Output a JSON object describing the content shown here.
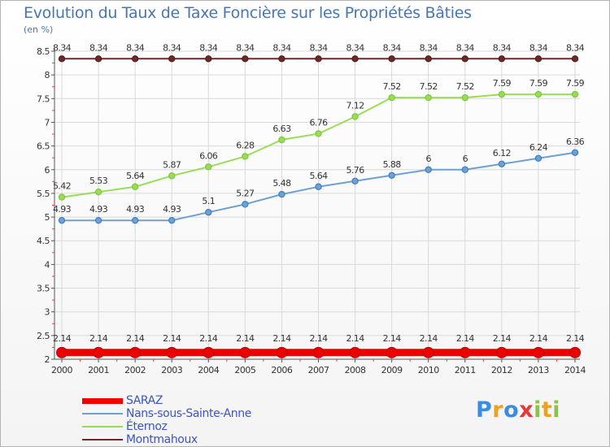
{
  "header": {
    "title": "Evolution du Taux de Taxe Foncière sur les Propriétés Bâties",
    "unit": "(en %)"
  },
  "brand": {
    "logo_text": "Proxiti",
    "letters": [
      "P",
      "r",
      "o",
      "x",
      "i",
      "t",
      "i"
    ],
    "letter_colors": [
      "#3a8de0",
      "#f0a020",
      "#3a8de0",
      "#e53935",
      "#8bc34a",
      "#f0a020",
      "#8bc34a"
    ]
  },
  "chart_data": {
    "type": "line",
    "title": "Evolution du Taux de Taxe Foncière sur les Propriétés Bâties",
    "ylabel": "(en %)",
    "xlabel": "",
    "ylim": [
      2,
      8.5
    ],
    "yticks": [
      "2",
      "2.5",
      "3",
      "3.5",
      "4",
      "4.5",
      "5",
      "5.5",
      "6",
      "6.5",
      "7",
      "7.5",
      "8",
      "8.5"
    ],
    "categories": [
      "2000",
      "2001",
      "2002",
      "2003",
      "2004",
      "2005",
      "2006",
      "2007",
      "2008",
      "2009",
      "2010",
      "2011",
      "2012",
      "2013",
      "2014"
    ],
    "series": [
      {
        "name": "SARAZ",
        "color": "#ee0000",
        "thick": true,
        "values": [
          2.14,
          2.14,
          2.14,
          2.14,
          2.14,
          2.14,
          2.14,
          2.14,
          2.14,
          2.14,
          2.14,
          2.14,
          2.14,
          2.14,
          2.14
        ],
        "labels": [
          "2.14",
          "2.14",
          "2.14",
          "2.14",
          "2.14",
          "2.14",
          "2.14",
          "2.14",
          "2.14",
          "2.14",
          "2.14",
          "2.14",
          "2.14",
          "2.14",
          "2.14"
        ]
      },
      {
        "name": "Nans-sous-Sainte-Anne",
        "color": "#6ea0d4",
        "marker": "#3d7fc2",
        "values": [
          4.93,
          4.93,
          4.93,
          4.93,
          5.1,
          5.27,
          5.48,
          5.64,
          5.76,
          5.88,
          6,
          6,
          6.12,
          6.24,
          6.36
        ],
        "labels": [
          "4.93",
          "4.93",
          "4.93",
          "4.93",
          "5.1",
          "5.27",
          "5.48",
          "5.64",
          "5.76",
          "5.88",
          "6",
          "6",
          "6.12",
          "6.24",
          "6.36"
        ]
      },
      {
        "name": "Éternoz",
        "color": "#99dd55",
        "marker": "#7bc83a",
        "values": [
          5.42,
          5.53,
          5.64,
          5.87,
          6.06,
          6.28,
          6.63,
          6.76,
          7.12,
          7.52,
          7.52,
          7.52,
          7.59,
          7.59,
          7.59
        ],
        "labels": [
          "5.42",
          "5.53",
          "5.64",
          "5.87",
          "6.06",
          "6.28",
          "6.63",
          "6.76",
          "7.12",
          "7.52",
          "7.52",
          "7.52",
          "7.59",
          "7.59",
          "7.59"
        ]
      },
      {
        "name": "Montmahoux",
        "color": "#6b2a2a",
        "marker": "#5a1a1a",
        "values": [
          8.34,
          8.34,
          8.34,
          8.34,
          8.34,
          8.34,
          8.34,
          8.34,
          8.34,
          8.34,
          8.34,
          8.34,
          8.34,
          8.34,
          8.34
        ],
        "labels": [
          "8.34",
          "8.34",
          "8.34",
          "8.34",
          "8.34",
          "8.34",
          "8.34",
          "8.34",
          "8.34",
          "8.34",
          "8.34",
          "8.34",
          "8.34",
          "8.34",
          "8.34"
        ]
      }
    ]
  }
}
